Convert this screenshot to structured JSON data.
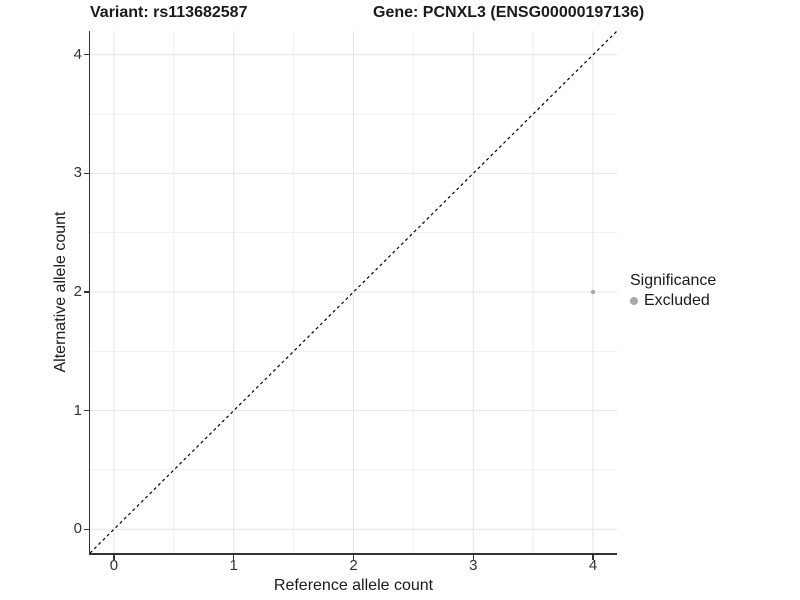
{
  "header": {
    "variant_title": "Variant: rs113682587",
    "gene_title": "Gene: PCNXL3 (ENSG00000197136)"
  },
  "axes": {
    "x_label": "Reference allele count",
    "y_label": "Alternative allele count"
  },
  "legend": {
    "title": "Significance",
    "items": [
      {
        "label": "Excluded",
        "color": "#a9a9a9"
      }
    ]
  },
  "colors": {
    "axis_line": "#333333",
    "tick_text": "#333333",
    "grid_major": "#e4e4e4",
    "grid_minor": "#f0f0f0",
    "identity_line": "#000000",
    "point_excluded": "#a9a9a9"
  },
  "chart_data": {
    "type": "scatter",
    "title_left": "Variant: rs113682587",
    "title_right": "Gene: PCNXL3 (ENSG00000197136)",
    "xlabel": "Reference allele count",
    "ylabel": "Alternative allele count",
    "xlim": [
      -0.2,
      4.2
    ],
    "ylim": [
      -0.2,
      4.2
    ],
    "x_ticks": [
      0,
      1,
      2,
      3,
      4
    ],
    "y_ticks": [
      0,
      1,
      2,
      3,
      4
    ],
    "x_minor_ticks": [
      0.5,
      1.5,
      2.5,
      3.5
    ],
    "y_minor_ticks": [
      0.5,
      1.5,
      2.5,
      3.5
    ],
    "grid": true,
    "reference_line": {
      "type": "identity",
      "equation": "y = x",
      "style": "dashed",
      "color": "#000000"
    },
    "legend_position": "right",
    "legend_title": "Significance",
    "series": [
      {
        "name": "Excluded",
        "color": "#a9a9a9",
        "marker": "circle",
        "point_radius": 2.2,
        "points": [
          {
            "x": 4,
            "y": 2
          }
        ]
      }
    ]
  }
}
